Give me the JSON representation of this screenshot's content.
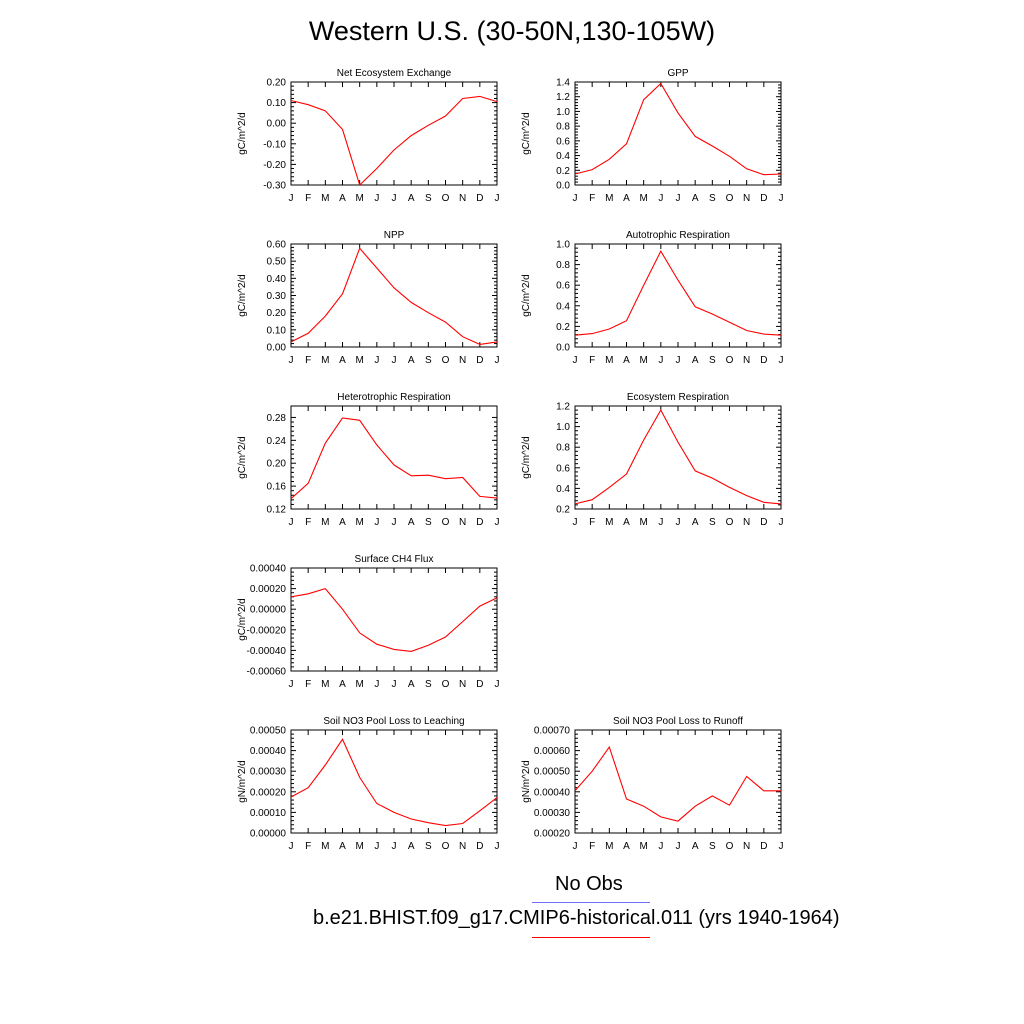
{
  "title": "Western U.S. (30-50N,130-105W)",
  "colors": {
    "model": "#ff0000",
    "obs": "#7070ff",
    "axis": "#000000"
  },
  "months": [
    "J",
    "F",
    "M",
    "A",
    "M",
    "J",
    "J",
    "A",
    "S",
    "O",
    "N",
    "D",
    "J"
  ],
  "legend": {
    "obs_label": "No Obs",
    "model_label": "b.e21.BHIST.f09_g17.CMIP6-historical.011 (yrs 1940-1964)"
  },
  "chart_data": [
    {
      "type": "line",
      "title": "Net Ecosystem Exchange",
      "ylabel": "gC/m^2/d",
      "ylim": [
        -0.3,
        0.2
      ],
      "yticks": [
        "-0.30",
        "-0.20",
        "-0.10",
        "0.00",
        "0.10",
        "0.20"
      ],
      "ytick_values": [
        -0.3,
        -0.2,
        -0.1,
        0.0,
        0.1,
        0.2
      ],
      "values": [
        0.11,
        0.09,
        0.06,
        -0.03,
        -0.3,
        -0.22,
        -0.13,
        -0.06,
        -0.01,
        0.035,
        0.12,
        0.13,
        0.105
      ]
    },
    {
      "type": "line",
      "title": "GPP",
      "ylabel": "gC/m^2/d",
      "ylim": [
        0.0,
        1.4
      ],
      "yticks": [
        "0.0",
        "0.2",
        "0.4",
        "0.6",
        "0.8",
        "1.0",
        "1.2",
        "1.4"
      ],
      "ytick_values": [
        0.0,
        0.2,
        0.4,
        0.6,
        0.8,
        1.0,
        1.2,
        1.4
      ],
      "values": [
        0.15,
        0.21,
        0.35,
        0.56,
        1.16,
        1.38,
        0.98,
        0.66,
        0.53,
        0.39,
        0.22,
        0.14,
        0.15
      ]
    },
    {
      "type": "line",
      "title": "NPP",
      "ylabel": "gC/m^2/d",
      "ylim": [
        0.0,
        0.6
      ],
      "yticks": [
        "0.00",
        "0.10",
        "0.20",
        "0.30",
        "0.40",
        "0.50",
        "0.60"
      ],
      "ytick_values": [
        0.0,
        0.1,
        0.2,
        0.3,
        0.4,
        0.5,
        0.6
      ],
      "values": [
        0.03,
        0.08,
        0.18,
        0.31,
        0.575,
        0.46,
        0.345,
        0.26,
        0.2,
        0.145,
        0.06,
        0.015,
        0.03
      ]
    },
    {
      "type": "line",
      "title": "Autotrophic Respiration",
      "ylabel": "gC/m^2/d",
      "ylim": [
        0.0,
        1.0
      ],
      "yticks": [
        "0.0",
        "0.2",
        "0.4",
        "0.6",
        "0.8",
        "1.0"
      ],
      "ytick_values": [
        0.0,
        0.2,
        0.4,
        0.6,
        0.8,
        1.0
      ],
      "values": [
        0.115,
        0.13,
        0.175,
        0.255,
        0.6,
        0.93,
        0.65,
        0.39,
        0.32,
        0.24,
        0.16,
        0.125,
        0.115
      ]
    },
    {
      "type": "line",
      "title": "Heterotrophic Respiration",
      "ylabel": "gC/m^2/d",
      "ylim": [
        0.12,
        0.3
      ],
      "yticks": [
        "0.12",
        "0.16",
        "0.20",
        "0.24",
        "0.28"
      ],
      "ytick_values": [
        0.12,
        0.16,
        0.2,
        0.24,
        0.28
      ],
      "values": [
        0.138,
        0.165,
        0.235,
        0.279,
        0.275,
        0.232,
        0.197,
        0.178,
        0.179,
        0.173,
        0.175,
        0.142,
        0.139
      ]
    },
    {
      "type": "line",
      "title": "Ecosystem Respiration",
      "ylabel": "gC/m^2/d",
      "ylim": [
        0.2,
        1.2
      ],
      "yticks": [
        "0.2",
        "0.4",
        "0.6",
        "0.8",
        "1.0",
        "1.2"
      ],
      "ytick_values": [
        0.2,
        0.4,
        0.6,
        0.8,
        1.0,
        1.2
      ],
      "values": [
        0.25,
        0.29,
        0.41,
        0.54,
        0.87,
        1.16,
        0.85,
        0.57,
        0.5,
        0.41,
        0.33,
        0.265,
        0.25
      ]
    },
    {
      "type": "line",
      "title": "Surface CH4 Flux",
      "ylabel": "gC/m^2/d",
      "ylim": [
        -0.0006,
        0.0004
      ],
      "yticks": [
        "-0.00060",
        "-0.00040",
        "-0.00020",
        "0.00000",
        "0.00020",
        "0.00040"
      ],
      "ytick_values": [
        -0.0006,
        -0.0004,
        -0.0002,
        0.0,
        0.0002,
        0.0004
      ],
      "values": [
        0.00012,
        0.00015,
        0.0002,
        0.0,
        -0.00023,
        -0.00034,
        -0.00039,
        -0.00041,
        -0.00035,
        -0.00027,
        -0.00012,
        3e-05,
        0.00011
      ]
    },
    {
      "type": "line",
      "title": "Soil NO3 Pool Loss to Leaching",
      "ylabel": "gN/m^2/d",
      "ylim": [
        0.0,
        0.0005
      ],
      "yticks": [
        "0.00000",
        "0.00010",
        "0.00020",
        "0.00030",
        "0.00040",
        "0.00050"
      ],
      "ytick_values": [
        0.0,
        0.0001,
        0.0002,
        0.0003,
        0.0004,
        0.0005
      ],
      "values": [
        0.000175,
        0.00022,
        0.00033,
        0.000455,
        0.00027,
        0.000143,
        0.0001,
        6.8e-05,
        5e-05,
        3.6e-05,
        4.6e-05,
        0.000108,
        0.000172
      ]
    },
    {
      "type": "line",
      "title": "Soil NO3 Pool Loss to Runoff",
      "ylabel": "gN/m^2/d",
      "ylim": [
        0.0002,
        0.0007
      ],
      "yticks": [
        "0.00020",
        "0.00030",
        "0.00040",
        "0.00050",
        "0.00060",
        "0.00070"
      ],
      "ytick_values": [
        0.0002,
        0.0003,
        0.0004,
        0.0005,
        0.0006,
        0.0007
      ],
      "values": [
        0.000405,
        0.0005,
        0.000617,
        0.000365,
        0.00033,
        0.000278,
        0.000258,
        0.00033,
        0.00038,
        0.000335,
        0.000475,
        0.000405,
        0.000405
      ]
    }
  ]
}
